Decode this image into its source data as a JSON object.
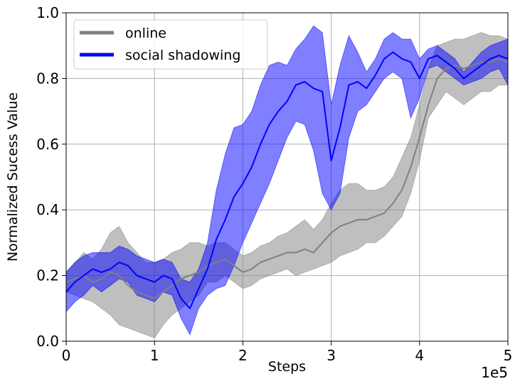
{
  "chart_data": {
    "type": "line",
    "title": "",
    "xlabel": "Steps",
    "ylabel": "Normalized Sucess Value",
    "x_offset_label": "1e5",
    "xlim": [
      0,
      5
    ],
    "ylim": [
      0,
      1.0
    ],
    "x_ticks": [
      "0",
      "1",
      "2",
      "3",
      "4",
      "5"
    ],
    "y_ticks": [
      "0.0",
      "0.2",
      "0.4",
      "0.6",
      "0.8",
      "1.0"
    ],
    "grid": true,
    "legend_position": "top-left",
    "series": [
      {
        "name": "online",
        "color": "#808080",
        "band_color": "#808080",
        "x": [
          0,
          0.1,
          0.2,
          0.3,
          0.4,
          0.5,
          0.6,
          0.7,
          0.8,
          0.9,
          1.0,
          1.1,
          1.2,
          1.3,
          1.4,
          1.5,
          1.6,
          1.7,
          1.8,
          1.9,
          2.0,
          2.1,
          2.2,
          2.3,
          2.4,
          2.5,
          2.6,
          2.7,
          2.8,
          2.9,
          3.0,
          3.1,
          3.2,
          3.3,
          3.4,
          3.5,
          3.6,
          3.7,
          3.8,
          3.9,
          4.0,
          4.1,
          4.2,
          4.3,
          4.4,
          4.5,
          4.6,
          4.7,
          4.8,
          4.9,
          5.0
        ],
        "mean": [
          0.18,
          0.19,
          0.2,
          0.18,
          0.19,
          0.21,
          0.2,
          0.17,
          0.15,
          0.14,
          0.13,
          0.15,
          0.17,
          0.19,
          0.2,
          0.21,
          0.23,
          0.24,
          0.25,
          0.23,
          0.21,
          0.22,
          0.24,
          0.25,
          0.26,
          0.27,
          0.27,
          0.28,
          0.27,
          0.3,
          0.33,
          0.35,
          0.36,
          0.37,
          0.37,
          0.38,
          0.39,
          0.42,
          0.46,
          0.53,
          0.62,
          0.72,
          0.8,
          0.83,
          0.84,
          0.83,
          0.84,
          0.85,
          0.85,
          0.86,
          0.85
        ],
        "lower": [
          0.15,
          0.14,
          0.13,
          0.12,
          0.1,
          0.08,
          0.05,
          0.04,
          0.03,
          0.02,
          0.01,
          0.05,
          0.08,
          0.1,
          0.12,
          0.14,
          0.18,
          0.18,
          0.2,
          0.18,
          0.16,
          0.17,
          0.19,
          0.2,
          0.21,
          0.22,
          0.2,
          0.21,
          0.22,
          0.23,
          0.24,
          0.26,
          0.27,
          0.28,
          0.3,
          0.3,
          0.32,
          0.35,
          0.38,
          0.45,
          0.55,
          0.68,
          0.72,
          0.76,
          0.74,
          0.72,
          0.74,
          0.76,
          0.76,
          0.78,
          0.78
        ],
        "upper": [
          0.21,
          0.24,
          0.27,
          0.25,
          0.28,
          0.33,
          0.35,
          0.3,
          0.27,
          0.24,
          0.24,
          0.25,
          0.27,
          0.28,
          0.3,
          0.3,
          0.29,
          0.3,
          0.3,
          0.28,
          0.26,
          0.27,
          0.29,
          0.3,
          0.32,
          0.33,
          0.35,
          0.37,
          0.34,
          0.37,
          0.42,
          0.46,
          0.48,
          0.48,
          0.46,
          0.46,
          0.47,
          0.5,
          0.56,
          0.62,
          0.72,
          0.83,
          0.9,
          0.91,
          0.92,
          0.92,
          0.93,
          0.94,
          0.93,
          0.93,
          0.92
        ]
      },
      {
        "name": "social shadowing",
        "color": "#0000ff",
        "band_color": "#0000ff",
        "x": [
          0,
          0.1,
          0.2,
          0.3,
          0.4,
          0.5,
          0.6,
          0.7,
          0.8,
          0.9,
          1.0,
          1.1,
          1.2,
          1.3,
          1.4,
          1.5,
          1.6,
          1.7,
          1.8,
          1.9,
          2.0,
          2.1,
          2.2,
          2.3,
          2.4,
          2.5,
          2.6,
          2.7,
          2.8,
          2.9,
          3.0,
          3.1,
          3.2,
          3.3,
          3.4,
          3.5,
          3.6,
          3.7,
          3.8,
          3.9,
          4.0,
          4.1,
          4.2,
          4.3,
          4.4,
          4.5,
          4.6,
          4.7,
          4.8,
          4.9,
          5.0
        ],
        "mean": [
          0.15,
          0.18,
          0.2,
          0.22,
          0.21,
          0.22,
          0.24,
          0.23,
          0.2,
          0.19,
          0.18,
          0.2,
          0.19,
          0.13,
          0.1,
          0.16,
          0.22,
          0.31,
          0.37,
          0.44,
          0.48,
          0.53,
          0.6,
          0.66,
          0.7,
          0.73,
          0.78,
          0.79,
          0.77,
          0.76,
          0.55,
          0.65,
          0.78,
          0.79,
          0.77,
          0.81,
          0.86,
          0.88,
          0.86,
          0.85,
          0.8,
          0.86,
          0.87,
          0.85,
          0.83,
          0.8,
          0.82,
          0.84,
          0.86,
          0.87,
          0.86
        ],
        "lower": [
          0.09,
          0.12,
          0.14,
          0.17,
          0.15,
          0.17,
          0.19,
          0.18,
          0.14,
          0.13,
          0.12,
          0.15,
          0.14,
          0.07,
          0.02,
          0.1,
          0.14,
          0.16,
          0.17,
          0.23,
          0.3,
          0.36,
          0.42,
          0.48,
          0.55,
          0.62,
          0.67,
          0.66,
          0.58,
          0.45,
          0.4,
          0.45,
          0.62,
          0.7,
          0.72,
          0.76,
          0.8,
          0.82,
          0.8,
          0.68,
          0.74,
          0.83,
          0.84,
          0.82,
          0.8,
          0.78,
          0.79,
          0.8,
          0.82,
          0.83,
          0.78
        ],
        "upper": [
          0.21,
          0.24,
          0.26,
          0.27,
          0.27,
          0.27,
          0.29,
          0.28,
          0.26,
          0.25,
          0.24,
          0.25,
          0.24,
          0.19,
          0.18,
          0.22,
          0.3,
          0.46,
          0.57,
          0.65,
          0.66,
          0.7,
          0.78,
          0.84,
          0.85,
          0.84,
          0.89,
          0.92,
          0.96,
          0.94,
          0.72,
          0.84,
          0.93,
          0.88,
          0.82,
          0.86,
          0.92,
          0.94,
          0.92,
          0.92,
          0.86,
          0.89,
          0.9,
          0.88,
          0.86,
          0.82,
          0.85,
          0.88,
          0.9,
          0.91,
          0.92
        ]
      }
    ]
  }
}
